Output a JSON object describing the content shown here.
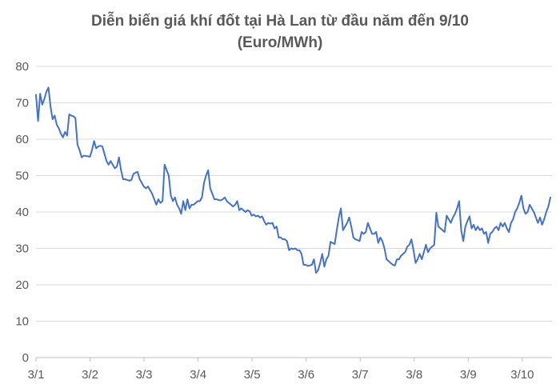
{
  "chart_data": {
    "type": "line",
    "title": "Diễn biến giá khí đốt tại Hà Lan từ đầu năm đến 9/10",
    "subtitle": "(Euro/MWh)",
    "xlabel": "",
    "ylabel": "",
    "ylim": [
      0,
      80
    ],
    "yticks": [
      "0",
      "10",
      "20",
      "30",
      "40",
      "50",
      "60",
      "70",
      "80"
    ],
    "xticks": [
      "3/1",
      "3/2",
      "3/3",
      "3/4",
      "3/5",
      "3/6",
      "3/7",
      "3/8",
      "3/9",
      "3/10"
    ],
    "grid": true,
    "line_color": "#4472c4",
    "series": [
      {
        "values": [
          72.2,
          65.0,
          72.5,
          69.5,
          71.0,
          73.0,
          74.2,
          69.0,
          65.5,
          66.5,
          64.0,
          63.0,
          61.5,
          60.5,
          62.0,
          61.0,
          66.8,
          66.5,
          66.3,
          65.8,
          58.5,
          57.0,
          55.0,
          55.5,
          55.4,
          55.3,
          55.2,
          57.0,
          59.5,
          57.5,
          58.0,
          58.2,
          58.0,
          56.0,
          54.0,
          53.0,
          54.0,
          53.0,
          52.0,
          52.5,
          55.0,
          51.5,
          49.0,
          49.0,
          48.8,
          48.6,
          48.8,
          50.5,
          50.8,
          51.0,
          49.0,
          48.0,
          47.0,
          46.5,
          47.0,
          46.0,
          45.0,
          43.5,
          42.0,
          43.5,
          42.5,
          43.0,
          53.0,
          51.5,
          50.0,
          44.5,
          43.0,
          44.0,
          42.0,
          41.0,
          39.5,
          43.0,
          40.5,
          43.5,
          41.0,
          42.0,
          42.0,
          42.5,
          43.0,
          43.0,
          44.0,
          48.0,
          50.0,
          51.5,
          46.5,
          45.0,
          43.5,
          43.5,
          43.3,
          43.2,
          43.5,
          44.0,
          43.0,
          42.5,
          42.0,
          41.5,
          42.0,
          43.0,
          40.5,
          41.0,
          40.5,
          40.0,
          40.5,
          40.2,
          39.0,
          39.3,
          38.8,
          39.0,
          38.5,
          38.8,
          37.5,
          36.5,
          37.0,
          36.8,
          37.0,
          35.5,
          36.0,
          33.0,
          33.0,
          32.5,
          32.5,
          32.0,
          29.5,
          30.0,
          29.8,
          30.0,
          29.5,
          29.5,
          28.5,
          25.5,
          25.5,
          25.2,
          25.3,
          25.5,
          27.0,
          23.3,
          24.0,
          26.0,
          28.5,
          25.0,
          27.0,
          28.0,
          31.8,
          31.5,
          31.2,
          35.0,
          38.5,
          41.0,
          35.0,
          36.0,
          37.0,
          38.5,
          36.0,
          33.0,
          32.5,
          32.3,
          32.0,
          34.5,
          34.0,
          34.5,
          37.0,
          35.5,
          34.0,
          34.0,
          34.5,
          31.5,
          33.0,
          32.0,
          30.0,
          27.0,
          26.5,
          26.0,
          25.5,
          25.3,
          27.0,
          27.0,
          28.0,
          28.5,
          29.0,
          30.5,
          31.0,
          32.5,
          29.5,
          26.0,
          27.0,
          28.5,
          27.0,
          29.0,
          31.0,
          29.0,
          30.0,
          30.5,
          31.0,
          39.8,
          36.0,
          35.5,
          35.0,
          34.5,
          39.0,
          38.0,
          37.0,
          38.5,
          39.5,
          41.0,
          43.0,
          35.0,
          32.0,
          36.0,
          37.5,
          38.8,
          35.5,
          36.5,
          35.0,
          36.0,
          35.0,
          35.5,
          34.0,
          34.5,
          31.5,
          34.0,
          34.5,
          35.5,
          36.0,
          35.0,
          37.0,
          36.0,
          37.0,
          35.5,
          34.5,
          37.0,
          38.0,
          40.0,
          41.0,
          42.5,
          44.5,
          41.0,
          39.5,
          40.0,
          42.0,
          41.0,
          40.0,
          38.5,
          37.0,
          38.5,
          36.5,
          38.0,
          40.0,
          41.5,
          44.0
        ]
      }
    ]
  }
}
